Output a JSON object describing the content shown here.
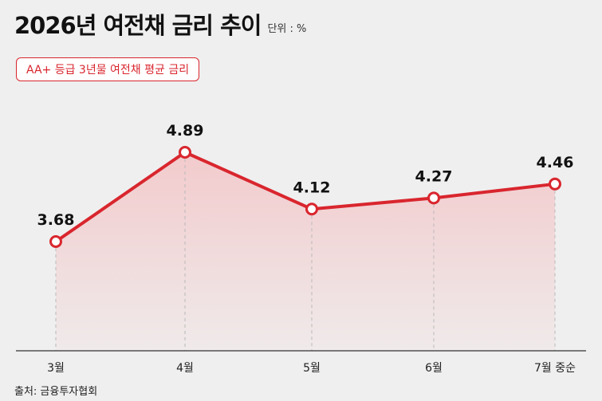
{
  "header": {
    "title": "2026년 여전채 금리 추이",
    "unit": "단위 : %"
  },
  "badge": {
    "label": "AA+ 등급 3년물 여전채 평균 금리"
  },
  "source": {
    "label": "출처: 금융투자협회"
  },
  "colors": {
    "line": "#d9262e",
    "area_top": "#f3c4c6",
    "background": "#efefef"
  },
  "chart_data": {
    "type": "line",
    "categories": [
      "3월",
      "4월",
      "5월",
      "6월",
      "7월 중순"
    ],
    "series": [
      {
        "values": [
          3.68,
          4.89,
          4.12,
          4.27,
          4.46
        ]
      }
    ],
    "data_labels": [
      "3.68",
      "4.89",
      "4.12",
      "4.27",
      "4.46"
    ],
    "title": "2026년 여전채 금리 추이",
    "xlabel": "",
    "ylabel": "",
    "unit": "단위 : %",
    "grid": false,
    "legend": "none"
  }
}
